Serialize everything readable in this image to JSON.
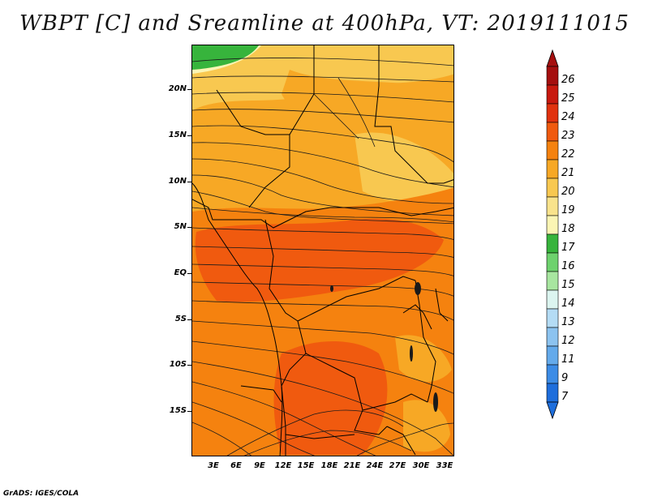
{
  "title": "WBPT [C] and Sreamline at 400hPa, VT: 2019111015",
  "credit": "GrADS: IGES/COLA",
  "lat_labels": [
    "20N",
    "15N",
    "10N",
    "5N",
    "EQ",
    "5S",
    "10S",
    "15S"
  ],
  "lon_labels": [
    "3E",
    "6E",
    "9E",
    "12E",
    "15E",
    "18E",
    "21E",
    "24E",
    "27E",
    "30E",
    "33E"
  ],
  "colorbar": {
    "labels": [
      "26",
      "25",
      "24",
      "23",
      "22",
      "21",
      "20",
      "19",
      "18",
      "17",
      "16",
      "15",
      "14",
      "13",
      "12",
      "11",
      "9",
      "7"
    ],
    "colors": [
      "#a50f0f",
      "#c8190f",
      "#e1320f",
      "#f05a0f",
      "#f5820f",
      "#f7a825",
      "#f8c850",
      "#f9e38c",
      "#fbf5b4",
      "#37b43c",
      "#6ed26e",
      "#a8e6a0",
      "#dcf5f0",
      "#b4dcf5",
      "#8cc3f0",
      "#64aaeb",
      "#3c8ce6",
      "#1e6edc"
    ]
  }
}
